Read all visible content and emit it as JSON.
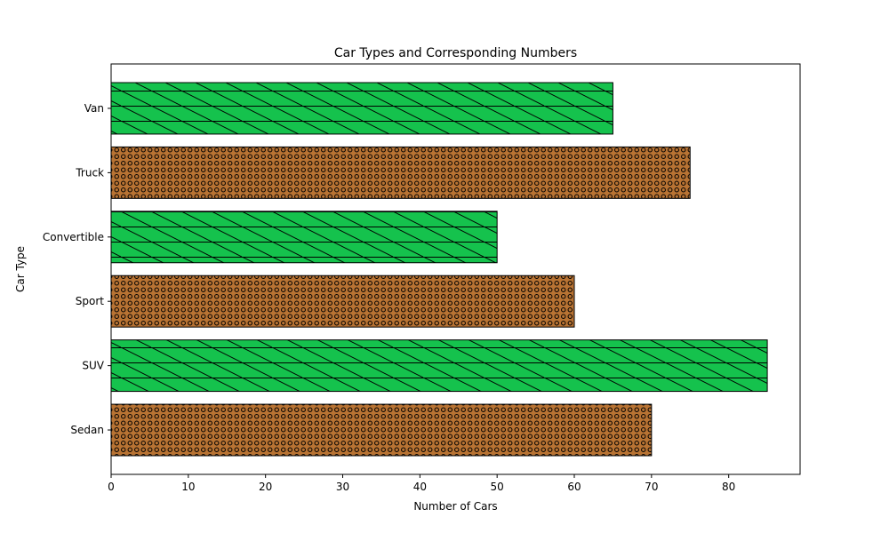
{
  "chart_data": {
    "type": "bar",
    "orientation": "horizontal",
    "title": "Car Types and Corresponding Numbers",
    "xlabel": "Number of Cars",
    "ylabel": "Car Type",
    "categories": [
      "Sedan",
      "SUV",
      "Sport",
      "Convertible",
      "Truck",
      "Van"
    ],
    "values": [
      70,
      85,
      60,
      50,
      75,
      65
    ],
    "xlim": [
      0,
      89.25
    ],
    "xticks": [
      0,
      10,
      20,
      30,
      40,
      50,
      60,
      70,
      80
    ],
    "grid": false,
    "bar_styles": [
      {
        "color": "#b87333",
        "hatch": "circles"
      },
      {
        "color": "#15c24d",
        "hatch": "diagonal-grid"
      },
      {
        "color": "#b87333",
        "hatch": "circles"
      },
      {
        "color": "#15c24d",
        "hatch": "diagonal-grid"
      },
      {
        "color": "#b87333",
        "hatch": "circles"
      },
      {
        "color": "#15c24d",
        "hatch": "diagonal-grid"
      }
    ]
  }
}
